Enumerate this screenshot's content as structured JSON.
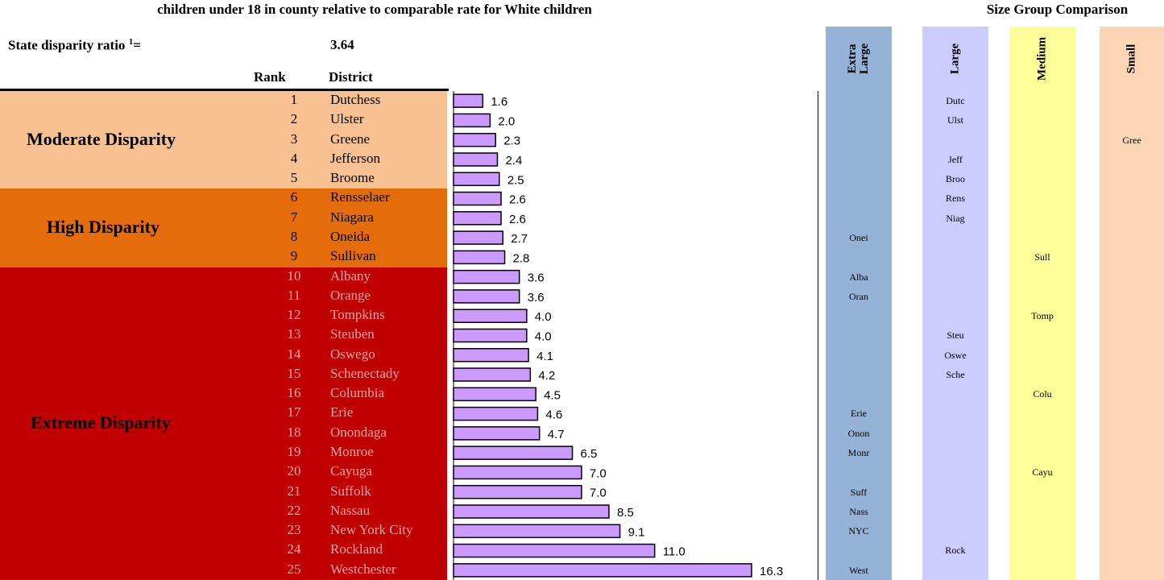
{
  "header": {
    "title_line": "children under 18 in county relative to comparable rate for White children",
    "size_group_title": "Size Group Comparison",
    "ratio_label": "State disparity ratio",
    "ratio_sup": "1",
    "ratio_eq": "=",
    "ratio_value": "3.64",
    "rank_header": "Rank",
    "district_header": "District"
  },
  "bands": [
    {
      "label": "Moderate Disparity",
      "color": "#f8c192",
      "text_color": "#000000"
    },
    {
      "label": "High Disparity",
      "color": "#e46c0a",
      "text_color": "#000000"
    },
    {
      "label": "Extreme Disparity",
      "color": "#c00000",
      "text_color": "#f4a6a6"
    }
  ],
  "size_columns": [
    {
      "label": "Extra Large",
      "color": "#95b3d7"
    },
    {
      "label": "Large",
      "color": "#ccccff"
    },
    {
      "label": "Medium",
      "color": "#ffff99"
    },
    {
      "label": "Small",
      "color": "#fcd5b5"
    }
  ],
  "chart_data": {
    "type": "bar",
    "orientation": "horizontal",
    "categories": [
      "Dutchess",
      "Ulster",
      "Greene",
      "Jefferson",
      "Broome",
      "Rensselaer",
      "Niagara",
      "Oneida",
      "Sullivan",
      "Albany",
      "Orange",
      "Tompkins",
      "Steuben",
      "Oswego",
      "Schenectady",
      "Columbia",
      "Erie",
      "Onondaga",
      "Monroe",
      "Cayuga",
      "Suffolk",
      "Nassau",
      "New York City",
      "Rockland",
      "Westchester"
    ],
    "values": [
      1.6,
      2.0,
      2.3,
      2.4,
      2.5,
      2.6,
      2.6,
      2.7,
      2.8,
      3.6,
      3.6,
      4.0,
      4.0,
      4.1,
      4.2,
      4.5,
      4.6,
      4.7,
      6.5,
      7.0,
      7.0,
      8.5,
      9.1,
      11.0,
      16.3
    ],
    "value_labels": [
      "1.6",
      "2.0",
      "2.3",
      "2.4",
      "2.5",
      "2.6",
      "2.6",
      "2.7",
      "2.8",
      "3.6",
      "3.6",
      "4.0",
      "4.0",
      "4.1",
      "4.2",
      "4.5",
      "4.6",
      "4.7",
      "6.5",
      "7.0",
      "7.0",
      "8.5",
      "9.1",
      "11.0",
      "16.3"
    ],
    "bar_color": "#cc99ff",
    "bar_border": "#000000"
  },
  "rows": [
    {
      "rank": "1",
      "district": "Dutchess",
      "band": 0,
      "size": 1,
      "abbr": "Dutc"
    },
    {
      "rank": "2",
      "district": "Ulster",
      "band": 0,
      "size": 1,
      "abbr": "Ulst"
    },
    {
      "rank": "3",
      "district": "Greene",
      "band": 0,
      "size": 3,
      "abbr": "Gree"
    },
    {
      "rank": "4",
      "district": "Jefferson",
      "band": 0,
      "size": 1,
      "abbr": "Jeff"
    },
    {
      "rank": "5",
      "district": "Broome",
      "band": 0,
      "size": 1,
      "abbr": "Broo"
    },
    {
      "rank": "6",
      "district": "Rensselaer",
      "band": 1,
      "size": 1,
      "abbr": "Rens"
    },
    {
      "rank": "7",
      "district": "Niagara",
      "band": 1,
      "size": 1,
      "abbr": "Niag"
    },
    {
      "rank": "8",
      "district": "Oneida",
      "band": 1,
      "size": 0,
      "abbr": "Onei"
    },
    {
      "rank": "9",
      "district": "Sullivan",
      "band": 1,
      "size": 2,
      "abbr": "Sull"
    },
    {
      "rank": "10",
      "district": "Albany",
      "band": 2,
      "size": 0,
      "abbr": "Alba"
    },
    {
      "rank": "11",
      "district": "Orange",
      "band": 2,
      "size": 0,
      "abbr": "Oran"
    },
    {
      "rank": "12",
      "district": "Tompkins",
      "band": 2,
      "size": 2,
      "abbr": "Tomp"
    },
    {
      "rank": "13",
      "district": "Steuben",
      "band": 2,
      "size": 1,
      "abbr": "Steu"
    },
    {
      "rank": "14",
      "district": "Oswego",
      "band": 2,
      "size": 1,
      "abbr": "Oswe"
    },
    {
      "rank": "15",
      "district": "Schenectady",
      "band": 2,
      "size": 1,
      "abbr": "Sche"
    },
    {
      "rank": "16",
      "district": "Columbia",
      "band": 2,
      "size": 2,
      "abbr": "Colu"
    },
    {
      "rank": "17",
      "district": "Erie",
      "band": 2,
      "size": 0,
      "abbr": "Erie"
    },
    {
      "rank": "18",
      "district": "Onondaga",
      "band": 2,
      "size": 0,
      "abbr": "Onon"
    },
    {
      "rank": "19",
      "district": "Monroe",
      "band": 2,
      "size": 0,
      "abbr": "Monr"
    },
    {
      "rank": "20",
      "district": "Cayuga",
      "band": 2,
      "size": 2,
      "abbr": "Cayu"
    },
    {
      "rank": "21",
      "district": "Suffolk",
      "band": 2,
      "size": 0,
      "abbr": "Suff"
    },
    {
      "rank": "22",
      "district": "Nassau",
      "band": 2,
      "size": 0,
      "abbr": "Nass"
    },
    {
      "rank": "23",
      "district": "New York City",
      "band": 2,
      "size": 0,
      "abbr": "NYC"
    },
    {
      "rank": "24",
      "district": "Rockland",
      "band": 2,
      "size": 1,
      "abbr": "Rock"
    },
    {
      "rank": "25",
      "district": "Westchester",
      "band": 2,
      "size": 0,
      "abbr": "West"
    }
  ]
}
